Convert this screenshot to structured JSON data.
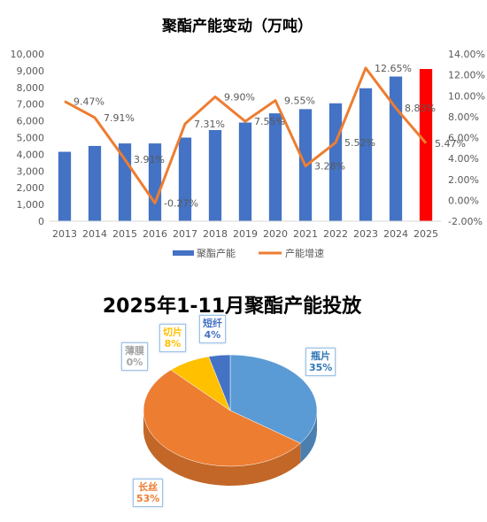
{
  "chart_data": [
    {
      "type": "bar+line",
      "title": "聚酯产能变动（万吨）",
      "categories": [
        "2013",
        "2014",
        "2015",
        "2016",
        "2017",
        "2018",
        "2019",
        "2020",
        "2021",
        "2022",
        "2023",
        "2024",
        "2025"
      ],
      "series": [
        {
          "name": "聚酯产能",
          "type": "bar",
          "axis": "left",
          "values": [
            4150,
            4500,
            4650,
            4650,
            5000,
            5450,
            5900,
            6450,
            6700,
            7050,
            7950,
            8650,
            9100
          ],
          "color": "#4472c4",
          "highlight_color": "#ff0000",
          "highlight_index": 12
        },
        {
          "name": "产能增速",
          "type": "line",
          "axis": "right",
          "values": [
            9.47,
            7.91,
            3.91,
            -0.27,
            7.31,
            9.9,
            7.55,
            9.55,
            3.28,
            5.52,
            12.65,
            8.83,
            5.47
          ],
          "labels": [
            "9.47%",
            "7.91%",
            "3.91%",
            "-0.27%",
            "7.31%",
            "9.90%",
            "7.55%",
            "9.55%",
            "3.28%",
            "5.52%",
            "12.65%",
            "8.83%",
            "5.47%"
          ],
          "color": "#ed7d31"
        }
      ],
      "y_left": {
        "range": [
          0,
          10000
        ],
        "ticks": [
          "0",
          "1,000",
          "2,000",
          "3,000",
          "4,000",
          "5,000",
          "6,000",
          "7,000",
          "8,000",
          "9,000",
          "10,000"
        ]
      },
      "y_right": {
        "range": [
          -2,
          14
        ],
        "ticks": [
          "-2.00%",
          "0.00%",
          "2.00%",
          "4.00%",
          "6.00%",
          "8.00%",
          "10.00%",
          "12.00%",
          "14.00%"
        ]
      },
      "grid": false,
      "legend": "bottom"
    },
    {
      "type": "pie",
      "title": "2025年1-11月聚酯产能投放",
      "slices": [
        {
          "name": "瓶片",
          "value": 35,
          "label": "35%",
          "color": "#5b9bd5",
          "text_color": "#2e75b6"
        },
        {
          "name": "长丝",
          "value": 53,
          "label": "53%",
          "color": "#ed7d31",
          "text_color": "#ed7d31"
        },
        {
          "name": "薄膜",
          "value": 0,
          "label": "0%",
          "color": "#a5a5a5",
          "text_color": "#a5a5a5"
        },
        {
          "name": "切片",
          "value": 8,
          "label": "8%",
          "color": "#ffc000",
          "text_color": "#ffc000"
        },
        {
          "name": "短纤",
          "value": 4,
          "label": "4%",
          "color": "#4472c4",
          "text_color": "#4472c4"
        }
      ]
    }
  ]
}
